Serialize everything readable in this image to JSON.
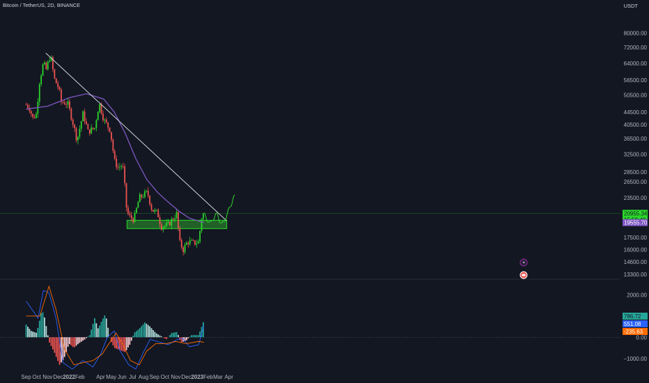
{
  "header": {
    "symbol": "Bitcoin / TetherUS, 2D, BINANCE",
    "unit": "USDT"
  },
  "colors": {
    "background": "#131722",
    "up": "#26a69a",
    "down": "#ef5350",
    "upCandle": "#2bd72b",
    "downCandle": "#ef5350",
    "ma": "#7e57c2",
    "trendline": "#d1d4dc",
    "zone": "#2e9e2e",
    "projection": "#2bd72b",
    "macd": "#2962ff",
    "signal": "#ff6d00"
  },
  "chart_data": [
    {
      "type": "candlestick",
      "title": "Bitcoin / TetherUS, 2D, BINANCE",
      "y_scale": "log",
      "y_ticks": [
        "80000.00",
        "72000.00",
        "64000.00",
        "56500.00",
        "50500.00",
        "44500.00",
        "40500.00",
        "36500.00",
        "32500.00",
        "28500.00",
        "26500.00",
        "23500.00",
        "17500.00",
        "16000.00",
        "14600.00",
        "13300.00"
      ],
      "x_ticks": [
        "Sep",
        "Oct",
        "Nov",
        "Dec",
        "2022",
        "Feb",
        "Apr",
        "May",
        "Jun",
        "Jul",
        "Aug",
        "Sep",
        "Oct",
        "Nov",
        "Dec",
        "2023",
        "Feb",
        "Mar",
        "Apr"
      ],
      "ylim": [
        12900,
        90000
      ],
      "price_series": [
        {
          "date": "2021-09-01",
          "close": 47000
        },
        {
          "date": "2021-09-10",
          "close": 46000
        },
        {
          "date": "2021-09-20",
          "close": 42500
        },
        {
          "date": "2021-10-01",
          "close": 44000
        },
        {
          "date": "2021-10-08",
          "close": 55000
        },
        {
          "date": "2021-10-20",
          "close": 64000
        },
        {
          "date": "2021-10-28",
          "close": 61000
        },
        {
          "date": "2021-11-09",
          "close": 68000
        },
        {
          "date": "2021-11-20",
          "close": 57000
        },
        {
          "date": "2021-12-03",
          "close": 53000
        },
        {
          "date": "2021-12-10",
          "close": 48000
        },
        {
          "date": "2021-12-28",
          "close": 47500
        },
        {
          "date": "2022-01-10",
          "close": 42000
        },
        {
          "date": "2022-01-24",
          "close": 36000
        },
        {
          "date": "2022-02-10",
          "close": 44000
        },
        {
          "date": "2022-02-24",
          "close": 38500
        },
        {
          "date": "2022-03-15",
          "close": 39500
        },
        {
          "date": "2022-03-28",
          "close": 47500
        },
        {
          "date": "2022-04-10",
          "close": 42000
        },
        {
          "date": "2022-04-28",
          "close": 39000
        },
        {
          "date": "2022-05-10",
          "close": 31000
        },
        {
          "date": "2022-05-20",
          "close": 29500
        },
        {
          "date": "2022-06-03",
          "close": 30000
        },
        {
          "date": "2022-06-14",
          "close": 21500
        },
        {
          "date": "2022-06-20",
          "close": 20500
        },
        {
          "date": "2022-07-05",
          "close": 20000
        },
        {
          "date": "2022-07-20",
          "close": 23500
        },
        {
          "date": "2022-08-12",
          "close": 24500
        },
        {
          "date": "2022-08-25",
          "close": 21500
        },
        {
          "date": "2022-09-10",
          "close": 21000
        },
        {
          "date": "2022-09-20",
          "close": 19000
        },
        {
          "date": "2022-10-10",
          "close": 19200
        },
        {
          "date": "2022-11-05",
          "close": 21000
        },
        {
          "date": "2022-11-10",
          "close": 17000
        },
        {
          "date": "2022-11-22",
          "close": 16000
        },
        {
          "date": "2022-12-05",
          "close": 17000
        },
        {
          "date": "2022-12-20",
          "close": 16800
        },
        {
          "date": "2023-01-05",
          "close": 16900
        },
        {
          "date": "2023-01-14",
          "close": 20500
        },
        {
          "date": "2023-01-20",
          "close": 20955.34
        }
      ],
      "ma_series": [
        {
          "date": "2021-09-01",
          "value": 45500
        },
        {
          "date": "2021-11-01",
          "value": 46500
        },
        {
          "date": "2022-01-01",
          "value": 49500
        },
        {
          "date": "2022-02-20",
          "value": 51000
        },
        {
          "date": "2022-04-10",
          "value": 49000
        },
        {
          "date": "2022-05-10",
          "value": 44500
        },
        {
          "date": "2022-06-10",
          "value": 38000
        },
        {
          "date": "2022-07-10",
          "value": 31500
        },
        {
          "date": "2022-08-10",
          "value": 27000
        },
        {
          "date": "2022-09-10",
          "value": 24500
        },
        {
          "date": "2022-10-10",
          "value": 22800
        },
        {
          "date": "2022-11-10",
          "value": 21300
        },
        {
          "date": "2022-12-10",
          "value": 20200
        },
        {
          "date": "2023-01-20",
          "value": 19555.7
        }
      ],
      "trendline": [
        {
          "date": "2021-10-27",
          "value": 69000
        },
        {
          "date": "2023-03-26",
          "value": 19800
        }
      ],
      "support_zone": {
        "from": "2022-06-15",
        "to": "2023-03-26",
        "low": 18700,
        "high": 19900
      },
      "projection": [
        {
          "date": "2023-01-20",
          "value": 21000
        },
        {
          "date": "2023-02-01",
          "value": 19600
        },
        {
          "date": "2023-02-15",
          "value": 19900
        },
        {
          "date": "2023-02-25",
          "value": 21000
        },
        {
          "date": "2023-03-08",
          "value": 19500
        },
        {
          "date": "2023-03-18",
          "value": 19700
        },
        {
          "date": "2023-04-05",
          "value": 22000
        },
        {
          "date": "2023-04-18",
          "value": 24000
        }
      ],
      "price_tags": [
        {
          "label": "20955.34",
          "color": "#2bd72b"
        },
        {
          "label": "15:59:48",
          "color": "#2bd72b"
        },
        {
          "label": "19555.70",
          "color": "#7e57c2"
        }
      ]
    },
    {
      "type": "histogram",
      "title": "MACD",
      "y_ticks": [
        "2000.00",
        "1000.00",
        "0.00",
        "−1000.00"
      ],
      "ylim": [
        -1500,
        2700
      ],
      "histogram": [
        {
          "date": "2021-09-01",
          "value": 600
        },
        {
          "date": "2021-09-15",
          "value": 300
        },
        {
          "date": "2021-10-01",
          "value": 200
        },
        {
          "date": "2021-10-08",
          "value": 700
        },
        {
          "date": "2021-10-16",
          "value": 1300
        },
        {
          "date": "2021-10-24",
          "value": 900
        },
        {
          "date": "2021-11-05",
          "value": -200
        },
        {
          "date": "2021-11-20",
          "value": -700
        },
        {
          "date": "2021-12-05",
          "value": -1300
        },
        {
          "date": "2021-12-18",
          "value": -1000
        },
        {
          "date": "2022-01-01",
          "value": -300
        },
        {
          "date": "2022-01-15",
          "value": -500
        },
        {
          "date": "2022-01-28",
          "value": -300
        },
        {
          "date": "2022-02-15",
          "value": -100
        },
        {
          "date": "2022-03-01",
          "value": 100
        },
        {
          "date": "2022-03-15",
          "value": 900
        },
        {
          "date": "2022-03-25",
          "value": 400
        },
        {
          "date": "2022-04-05",
          "value": 800
        },
        {
          "date": "2022-04-15",
          "value": 1100
        },
        {
          "date": "2022-04-28",
          "value": -100
        },
        {
          "date": "2022-05-10",
          "value": -500
        },
        {
          "date": "2022-05-25",
          "value": -600
        },
        {
          "date": "2022-06-10",
          "value": -700
        },
        {
          "date": "2022-06-25",
          "value": -300
        },
        {
          "date": "2022-07-05",
          "value": 200
        },
        {
          "date": "2022-07-20",
          "value": 400
        },
        {
          "date": "2022-08-05",
          "value": 700
        },
        {
          "date": "2022-08-20",
          "value": 500
        },
        {
          "date": "2022-09-05",
          "value": 200
        },
        {
          "date": "2022-09-20",
          "value": 50
        },
        {
          "date": "2022-10-05",
          "value": -100
        },
        {
          "date": "2022-10-20",
          "value": 200
        },
        {
          "date": "2022-11-05",
          "value": 250
        },
        {
          "date": "2022-11-15",
          "value": -250
        },
        {
          "date": "2022-12-01",
          "value": -150
        },
        {
          "date": "2022-12-15",
          "value": 100
        },
        {
          "date": "2023-01-05",
          "value": 100
        },
        {
          "date": "2023-01-20",
          "value": 786.72
        }
      ],
      "series": [
        {
          "points": [
            {
              "date": "2021-09-01",
              "value": 1700
            },
            {
              "date": "2021-10-05",
              "value": 900
            },
            {
              "date": "2021-10-20",
              "value": 2200
            },
            {
              "date": "2021-11-05",
              "value": 2100
            },
            {
              "date": "2021-11-25",
              "value": 900
            },
            {
              "date": "2021-12-15",
              "value": -1200
            },
            {
              "date": "2022-01-10",
              "value": -1500
            },
            {
              "date": "2022-02-10",
              "value": -1100
            },
            {
              "date": "2022-03-10",
              "value": -1400
            },
            {
              "date": "2022-04-01",
              "value": -800
            },
            {
              "date": "2022-04-20",
              "value": 0
            },
            {
              "date": "2022-05-10",
              "value": 300
            },
            {
              "date": "2022-05-25",
              "value": -600
            },
            {
              "date": "2022-06-20",
              "value": -1300
            },
            {
              "date": "2022-07-10",
              "value": -1500
            },
            {
              "date": "2022-08-01",
              "value": -700
            },
            {
              "date": "2022-08-20",
              "value": -100
            },
            {
              "date": "2022-09-10",
              "value": -200
            },
            {
              "date": "2022-10-10",
              "value": -350
            },
            {
              "date": "2022-11-05",
              "value": -100
            },
            {
              "date": "2022-11-20",
              "value": -50
            },
            {
              "date": "2022-12-10",
              "value": -450
            },
            {
              "date": "2023-01-05",
              "value": -350
            },
            {
              "date": "2023-01-20",
              "value": 551.08
            }
          ]
        },
        {
          "points": [
            {
              "date": "2021-09-01",
              "value": 1000
            },
            {
              "date": "2021-10-10",
              "value": 1000
            },
            {
              "date": "2021-11-05",
              "value": 2400
            },
            {
              "date": "2021-11-25",
              "value": 1300
            },
            {
              "date": "2021-12-20",
              "value": -600
            },
            {
              "date": "2022-01-15",
              "value": -1300
            },
            {
              "date": "2022-02-10",
              "value": -1200
            },
            {
              "date": "2022-03-10",
              "value": -1100
            },
            {
              "date": "2022-04-05",
              "value": -800
            },
            {
              "date": "2022-04-25",
              "value": -300
            },
            {
              "date": "2022-05-15",
              "value": 200
            },
            {
              "date": "2022-06-05",
              "value": -400
            },
            {
              "date": "2022-06-25",
              "value": -1100
            },
            {
              "date": "2022-07-20",
              "value": -1300
            },
            {
              "date": "2022-08-10",
              "value": -650
            },
            {
              "date": "2022-09-05",
              "value": -300
            },
            {
              "date": "2022-10-05",
              "value": -300
            },
            {
              "date": "2022-11-01",
              "value": -200
            },
            {
              "date": "2022-12-01",
              "value": -300
            },
            {
              "date": "2023-01-05",
              "value": -200
            },
            {
              "date": "2023-01-20",
              "value": -235.63
            }
          ]
        }
      ],
      "value_tags": [
        {
          "label": "786.72",
          "color": "#26a69a"
        },
        {
          "label": "551.08",
          "color": "#2962ff"
        },
        {
          "label": "-235.63",
          "color": "#ff6d00"
        }
      ]
    }
  ]
}
